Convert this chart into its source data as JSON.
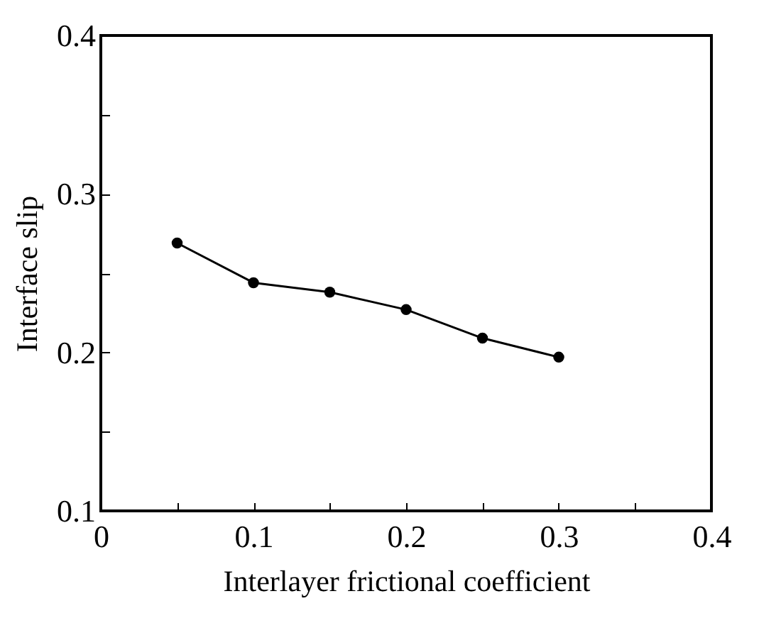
{
  "chart_data": {
    "type": "line",
    "xlabel": "Interlayer frictional coefficient",
    "ylabel": "Interface   slip",
    "x": [
      0.05,
      0.1,
      0.15,
      0.2,
      0.25,
      0.3
    ],
    "series": [
      {
        "color": "#000000",
        "values": [
          0.269,
          0.244,
          0.238,
          0.227,
          0.209,
          0.197
        ]
      }
    ],
    "xlim": [
      0,
      0.4
    ],
    "ylim": [
      0.1,
      0.4
    ],
    "xticks": [
      0,
      {
        "value": 0.05,
        "label": null
      },
      0.1,
      {
        "value": 0.15,
        "label": null
      },
      0.2,
      {
        "value": 0.25,
        "label": null
      },
      0.3,
      {
        "value": 0.35,
        "label": null
      },
      0.4
    ],
    "yticks": [
      0.1,
      {
        "value": 0.15,
        "label": null
      },
      0.2,
      {
        "value": 0.25,
        "label": null
      },
      0.3,
      {
        "value": 0.35,
        "label": null
      },
      0.4
    ],
    "marker": "circle",
    "line_style": "solid",
    "grid": false
  }
}
